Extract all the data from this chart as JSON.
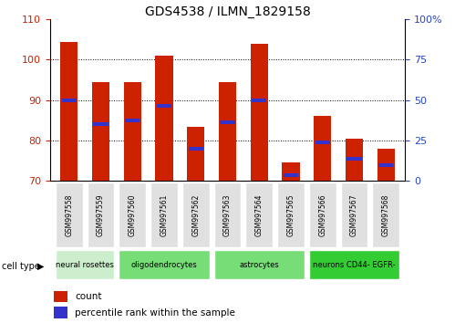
{
  "title": "GDS4538 / ILMN_1829158",
  "samples": [
    "GSM997558",
    "GSM997559",
    "GSM997560",
    "GSM997561",
    "GSM997562",
    "GSM997563",
    "GSM997564",
    "GSM997565",
    "GSM997566",
    "GSM997567",
    "GSM997568"
  ],
  "count_values": [
    104.5,
    94.5,
    94.5,
    101.0,
    83.5,
    94.5,
    104.0,
    74.5,
    86.0,
    80.5,
    78.0
  ],
  "percentile_values": [
    90,
    84,
    85,
    88.5,
    78.0,
    84.5,
    90,
    71.5,
    79.5,
    75.5,
    74.0
  ],
  "y_min": 70,
  "y_max": 110,
  "y_ticks": [
    70,
    80,
    90,
    100,
    110
  ],
  "y2_ticks": [
    0,
    25,
    50,
    75,
    100
  ],
  "bar_color": "#cc2200",
  "marker_color": "#3333cc",
  "bar_width": 0.55,
  "cell_type_spans": [
    {
      "label": "neural rosettes",
      "start": 0,
      "end": 2,
      "color": "#cceecc"
    },
    {
      "label": "oligodendrocytes",
      "start": 2,
      "end": 5,
      "color": "#77dd77"
    },
    {
      "label": "astrocytes",
      "start": 5,
      "end": 8,
      "color": "#77dd77"
    },
    {
      "label": "neurons CD44- EGFR-",
      "start": 8,
      "end": 11,
      "color": "#33cc33"
    }
  ],
  "tick_label_color_left": "#cc2200",
  "tick_label_color_right": "#2244cc"
}
